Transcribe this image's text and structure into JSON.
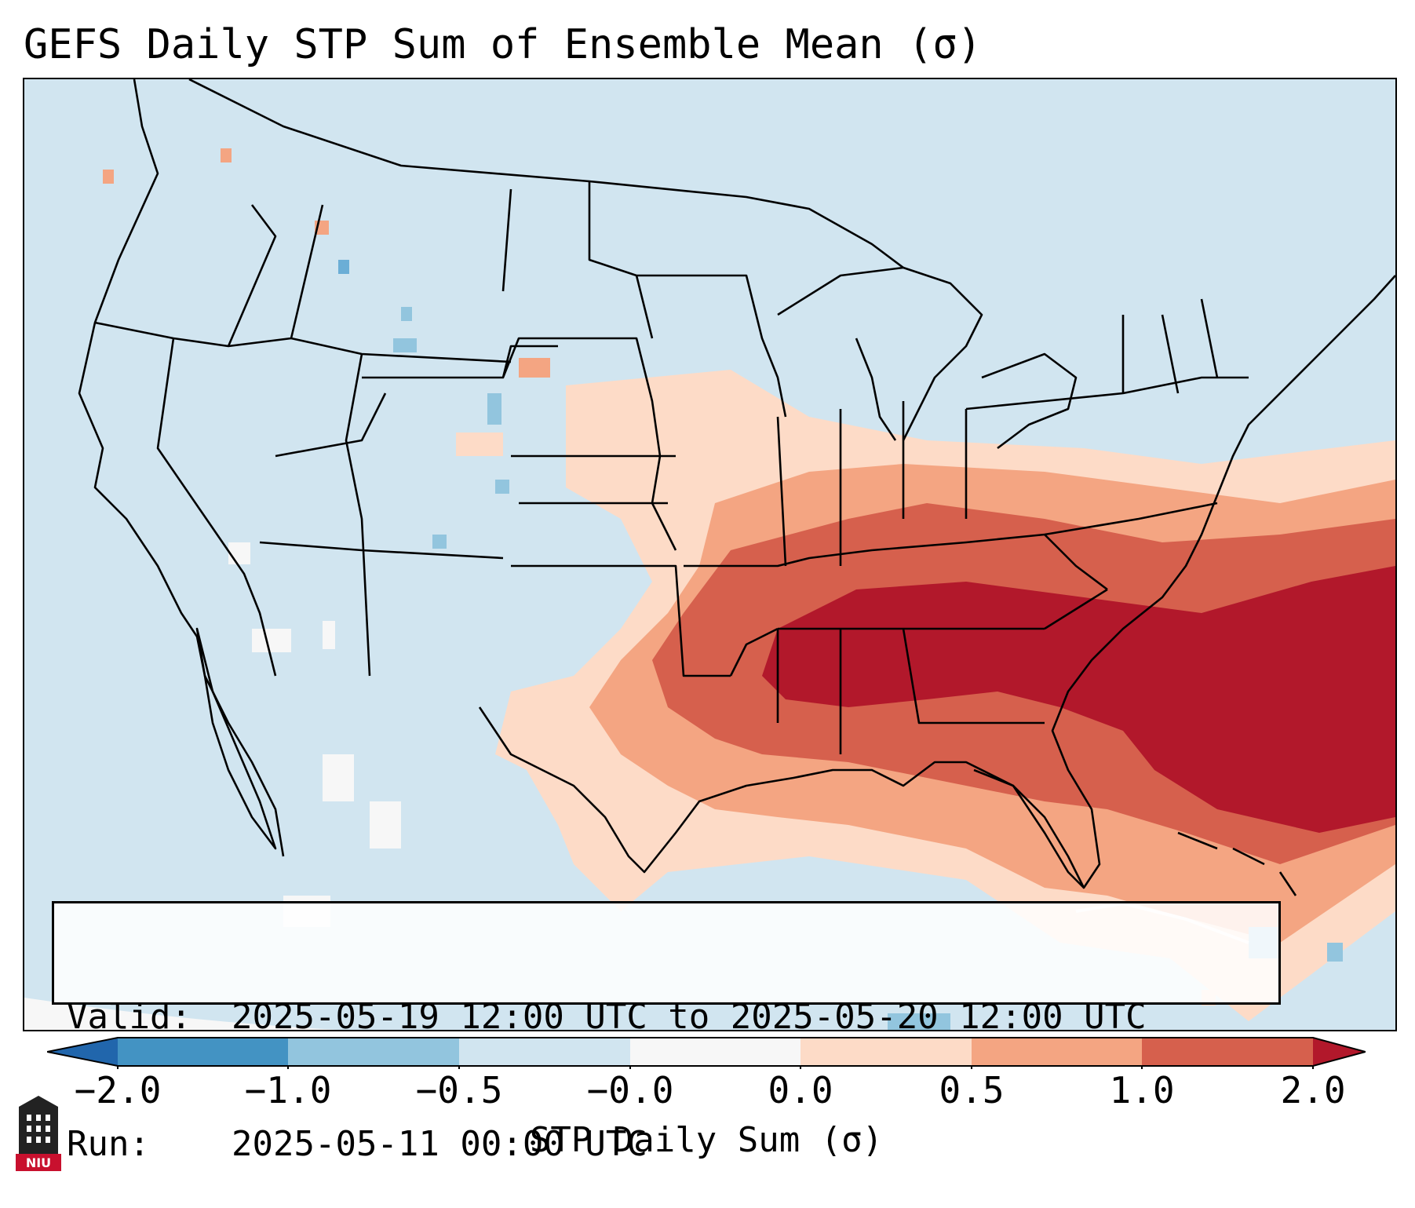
{
  "title": "GEFS Daily STP Sum of Ensemble Mean (σ)",
  "info": {
    "valid_label": "Valid:",
    "valid_value": "2025-05-19 12:00 UTC to 2025-05-20 12:00 UTC",
    "run_label": "Run:",
    "run_value": "2025-05-11 00:00 UTC"
  },
  "colorbar": {
    "label": "STP Daily Sum (σ)",
    "ticks": [
      "−2.0",
      "−1.0",
      "−0.5",
      "−0.0",
      "0.0",
      "0.5",
      "1.0",
      "2.0"
    ],
    "colors": {
      "under": "#2166ac",
      "b1": "#4393c3",
      "b2": "#92c5de",
      "b3": "#d1e5f0",
      "b4": "#f7f7f7",
      "b5": "#fddbc7",
      "b6": "#f4a582",
      "b7": "#d6604d",
      "over": "#b2182b"
    }
  },
  "logo": {
    "text": "NIU"
  },
  "map": {
    "background_color": "#d1e5f0",
    "hazard_regions": [
      {
        "level": "0.0 to 0.5",
        "color": "#fddbc7",
        "area": "Great Plains to Texas and Gulf Coast"
      },
      {
        "level": "0.5 to 1.0",
        "color": "#f4a582",
        "area": "Mid-Mississippi and Ohio Valleys"
      },
      {
        "level": "1.0 to 2.0",
        "color": "#d6604d",
        "area": "Ozarks, Ohio Valley, Carolinas"
      },
      {
        "level": "> 2.0",
        "color": "#b2182b",
        "area": "Arkansas, Tennessee, Deep South, Southeast coast and Atlantic"
      }
    ]
  }
}
